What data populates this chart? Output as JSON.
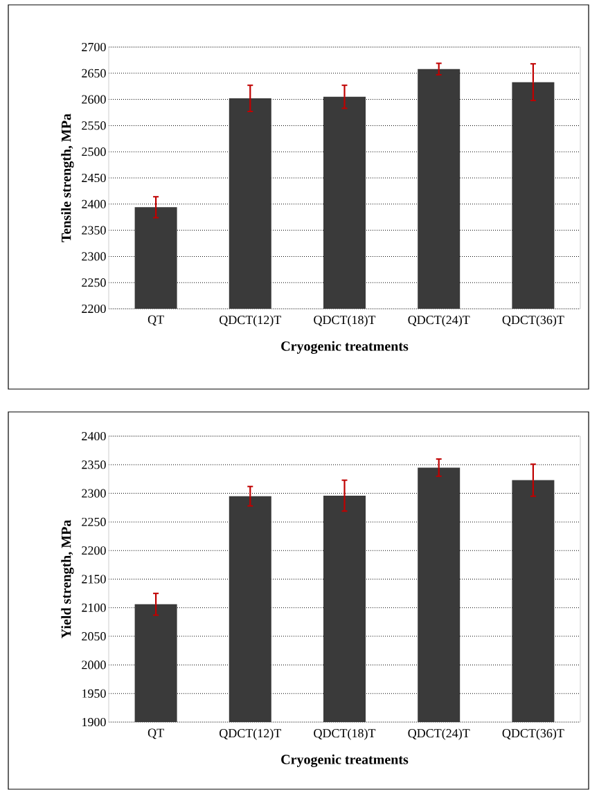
{
  "chart_data": [
    {
      "type": "bar",
      "xlabel": "Cryogenic treatments",
      "ylabel": "Tensile strength, MPa",
      "categories": [
        "QT",
        "QDCT(12)T",
        "QDCT(18)T",
        "QDCT(24)T",
        "QDCT(36)T"
      ],
      "values": [
        2394,
        2602,
        2605,
        2658,
        2633
      ],
      "errors": [
        20,
        25,
        22,
        11,
        35
      ],
      "color": "#3a3a3a",
      "ylim": [
        2200,
        2700
      ],
      "yticks": [
        2200,
        2250,
        2300,
        2350,
        2400,
        2450,
        2500,
        2550,
        2600,
        2650,
        2700
      ],
      "grid": "y"
    },
    {
      "type": "bar",
      "xlabel": "Cryogenic treatments",
      "ylabel": "Yield strength, MPa",
      "categories": [
        "QT",
        "QDCT(12)T",
        "QDCT(18)T",
        "QDCT(24)T",
        "QDCT(36)T"
      ],
      "values": [
        2106,
        2295,
        2296,
        2345,
        2323
      ],
      "errors": [
        19,
        17,
        27,
        15,
        28
      ],
      "color": "#3a3a3a",
      "ylim": [
        1900,
        2400
      ],
      "yticks": [
        1900,
        1950,
        2000,
        2050,
        2100,
        2150,
        2200,
        2250,
        2300,
        2350,
        2400
      ],
      "grid": "y"
    }
  ]
}
